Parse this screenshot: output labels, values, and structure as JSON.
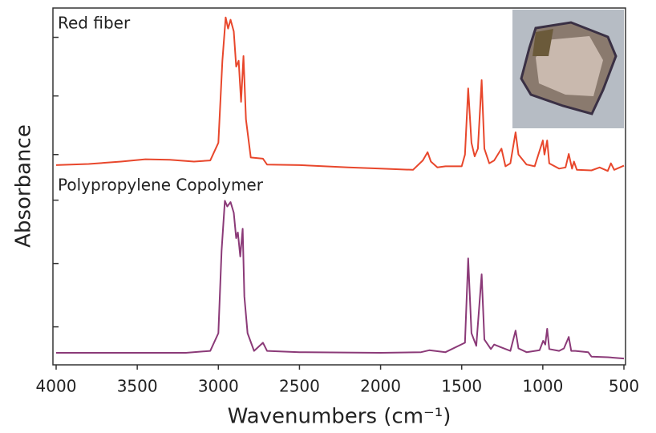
{
  "chart_data": [
    {
      "type": "line",
      "title": "Red fiber",
      "ylabel": "Absorbance",
      "color": "#e8472c",
      "xlim": [
        4000,
        500
      ],
      "ylim": [
        0.6,
        3.5
      ],
      "yticks": [
        1,
        2,
        3
      ],
      "x": [
        4000,
        3800,
        3600,
        3450,
        3300,
        3150,
        3050,
        3000,
        2975,
        2955,
        2940,
        2925,
        2905,
        2890,
        2875,
        2860,
        2845,
        2830,
        2800,
        2725,
        2700,
        2500,
        2200,
        2000,
        1800,
        1740,
        1710,
        1690,
        1650,
        1600,
        1500,
        1480,
        1460,
        1440,
        1420,
        1400,
        1377,
        1360,
        1330,
        1300,
        1255,
        1230,
        1200,
        1168,
        1150,
        1100,
        1050,
        1000,
        990,
        973,
        960,
        900,
        860,
        840,
        820,
        808,
        790,
        700,
        650,
        600,
        580,
        560,
        500
      ],
      "values": [
        0.82,
        0.84,
        0.88,
        0.92,
        0.91,
        0.88,
        0.9,
        1.2,
        2.6,
        3.34,
        3.15,
        3.3,
        3.1,
        2.5,
        2.6,
        1.9,
        2.68,
        1.6,
        0.95,
        0.93,
        0.83,
        0.82,
        0.78,
        0.76,
        0.74,
        0.9,
        1.04,
        0.88,
        0.78,
        0.8,
        0.8,
        1.0,
        2.13,
        1.2,
        0.97,
        1.1,
        2.27,
        1.1,
        0.85,
        0.9,
        1.1,
        0.8,
        0.85,
        1.38,
        1.0,
        0.83,
        0.8,
        1.24,
        1.0,
        1.24,
        0.85,
        0.76,
        0.78,
        1.01,
        0.76,
        0.88,
        0.74,
        0.73,
        0.78,
        0.72,
        0.85,
        0.74,
        0.81
      ]
    },
    {
      "type": "line",
      "title": "Polypropylene Copolymer",
      "xlabel": "Wavenumbers (cm⁻¹)",
      "color": "#8b3a78",
      "xlim": [
        4000,
        500
      ],
      "xticks": [
        4000,
        3500,
        3000,
        2500,
        2000,
        1500,
        1000,
        500
      ],
      "ylim": [
        0.4,
        3.35
      ],
      "yticks": [
        1,
        2,
        3
      ],
      "x": [
        4000,
        3600,
        3200,
        3050,
        3000,
        2980,
        2960,
        2945,
        2925,
        2905,
        2890,
        2880,
        2865,
        2850,
        2840,
        2820,
        2780,
        2725,
        2700,
        2500,
        2000,
        1750,
        1700,
        1600,
        1480,
        1460,
        1440,
        1410,
        1377,
        1360,
        1320,
        1300,
        1260,
        1200,
        1168,
        1150,
        1100,
        1020,
        998,
        985,
        973,
        960,
        900,
        870,
        840,
        825,
        800,
        720,
        700,
        600,
        500
      ],
      "values": [
        0.59,
        0.59,
        0.59,
        0.62,
        0.9,
        2.2,
        2.99,
        2.9,
        2.97,
        2.8,
        2.4,
        2.49,
        2.11,
        2.55,
        1.48,
        0.9,
        0.62,
        0.75,
        0.62,
        0.6,
        0.59,
        0.6,
        0.63,
        0.6,
        0.75,
        2.08,
        0.9,
        0.7,
        1.83,
        0.8,
        0.65,
        0.72,
        0.68,
        0.62,
        0.94,
        0.66,
        0.6,
        0.63,
        0.78,
        0.72,
        0.97,
        0.65,
        0.62,
        0.66,
        0.84,
        0.62,
        0.62,
        0.6,
        0.53,
        0.52,
        0.5
      ]
    }
  ]
}
